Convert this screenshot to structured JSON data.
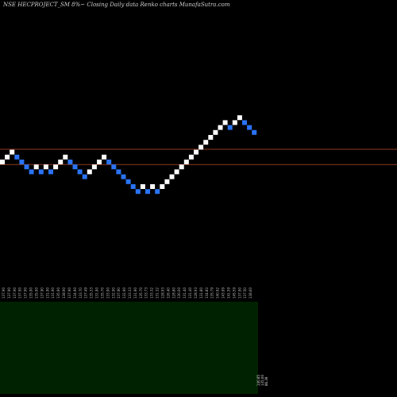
{
  "chart_data": {
    "type": "renko",
    "title": "NSE HECPROJECT_SM 8%~ Closing Daily data Renko charts MunafaSutra.com",
    "colors": {
      "up": "#ffffff",
      "down": "#2a73f5",
      "background": "#000000",
      "reference_line": "#8b3a1e",
      "volume_area": "#002200"
    },
    "bricks": [
      {
        "level": 0,
        "dir": "up"
      },
      {
        "level": 1,
        "dir": "up"
      },
      {
        "level": 2,
        "dir": "up"
      },
      {
        "level": 1,
        "dir": "down"
      },
      {
        "level": 0,
        "dir": "down"
      },
      {
        "level": -1,
        "dir": "down"
      },
      {
        "level": -2,
        "dir": "down"
      },
      {
        "level": -1,
        "dir": "up"
      },
      {
        "level": -2,
        "dir": "down"
      },
      {
        "level": -1,
        "dir": "up"
      },
      {
        "level": -2,
        "dir": "down"
      },
      {
        "level": -1,
        "dir": "up"
      },
      {
        "level": 0,
        "dir": "up"
      },
      {
        "level": 1,
        "dir": "up"
      },
      {
        "level": 0,
        "dir": "down"
      },
      {
        "level": -1,
        "dir": "down"
      },
      {
        "level": -2,
        "dir": "down"
      },
      {
        "level": -3,
        "dir": "down"
      },
      {
        "level": -2,
        "dir": "up"
      },
      {
        "level": -1,
        "dir": "up"
      },
      {
        "level": 0,
        "dir": "up"
      },
      {
        "level": 1,
        "dir": "up"
      },
      {
        "level": 0,
        "dir": "down"
      },
      {
        "level": -1,
        "dir": "down"
      },
      {
        "level": -2,
        "dir": "down"
      },
      {
        "level": -3,
        "dir": "down"
      },
      {
        "level": -4,
        "dir": "down"
      },
      {
        "level": -5,
        "dir": "down"
      },
      {
        "level": -6,
        "dir": "down"
      },
      {
        "level": -5,
        "dir": "up"
      },
      {
        "level": -6,
        "dir": "down"
      },
      {
        "level": -5,
        "dir": "up"
      },
      {
        "level": -6,
        "dir": "down"
      },
      {
        "level": -5,
        "dir": "up"
      },
      {
        "level": -4,
        "dir": "up"
      },
      {
        "level": -3,
        "dir": "up"
      },
      {
        "level": -2,
        "dir": "up"
      },
      {
        "level": -1,
        "dir": "up"
      },
      {
        "level": 0,
        "dir": "up"
      },
      {
        "level": 1,
        "dir": "up"
      },
      {
        "level": 2,
        "dir": "up"
      },
      {
        "level": 3,
        "dir": "up"
      },
      {
        "level": 4,
        "dir": "up"
      },
      {
        "level": 5,
        "dir": "up"
      },
      {
        "level": 6,
        "dir": "up"
      },
      {
        "level": 7,
        "dir": "up"
      },
      {
        "level": 8,
        "dir": "up"
      },
      {
        "level": 7,
        "dir": "down"
      },
      {
        "level": 8,
        "dir": "up"
      },
      {
        "level": 9,
        "dir": "up"
      },
      {
        "level": 8,
        "dir": "down"
      },
      {
        "level": 7,
        "dir": "down"
      },
      {
        "level": 6,
        "dir": "down"
      }
    ],
    "reference_lines": [
      2.6,
      -0.5
    ],
    "x_tick_labels": [
      "137.90",
      "137.90",
      "137.90",
      "137.90",
      "137.90",
      "135.90",
      "135.90",
      "137.90",
      "131.90",
      "131.90",
      "135.90",
      "138.90",
      "137.90",
      "134.90",
      "133.70",
      "137.49",
      "135.33",
      "131.90",
      "135.70",
      "133.90",
      "132.90",
      "137.90",
      "132.90",
      "133.33",
      "131.90",
      "135.70",
      "133.73",
      "133.32",
      "131.32",
      "128.93",
      "126.40",
      "128.80",
      "130.00",
      "131.40",
      "131.40",
      "128.93",
      "131.80",
      "134.83",
      "135.79",
      "140.92",
      "143.99",
      "141.59",
      "145.59",
      "137.90",
      "137.50",
      "138.60"
    ],
    "last_values": [
      "140.85",
      "135.00",
      "86.39"
    ],
    "grid": false
  }
}
